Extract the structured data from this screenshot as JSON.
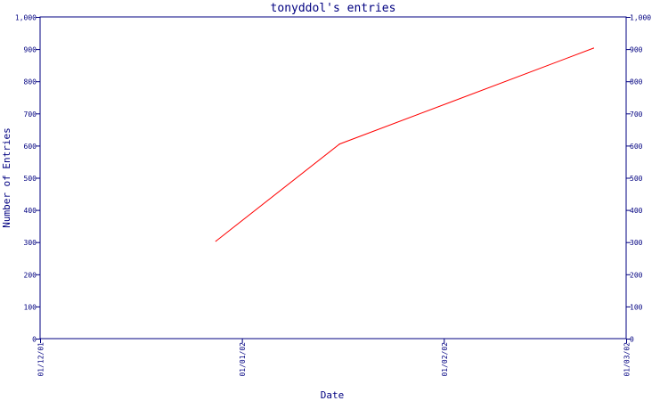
{
  "colors": {
    "axis": "#000080",
    "text": "#000080",
    "series": "#ff0000",
    "background": "#ffffff"
  },
  "chart_data": {
    "type": "line",
    "title": "tonyddol's entries",
    "xlabel": "Date",
    "ylabel": "Number of Entries",
    "x_axis_kind": "date",
    "xlim": [
      "2001-12-01",
      "2002-03-01"
    ],
    "ylim": [
      0,
      1000
    ],
    "y_ticks": [
      0,
      100,
      200,
      300,
      400,
      500,
      600,
      700,
      800,
      900,
      1000
    ],
    "y_tick_labels": [
      "0",
      "100",
      "200",
      "300",
      "400",
      "500",
      "600",
      "700",
      "800",
      "900",
      "1,000"
    ],
    "x_ticks": [
      "2001-12-01",
      "2002-01-01",
      "2002-02-01",
      "2002-03-01"
    ],
    "x_tick_labels": [
      "01/12/01",
      "01/01/02",
      "01/02/02",
      "01/03/02"
    ],
    "right_axis_mirrors_left": true,
    "grid": false,
    "legend": "none",
    "series": [
      {
        "x": [
          "2001-12-28",
          "2002-01-16",
          "2002-02-24"
        ],
        "y": [
          303,
          605,
          903
        ]
      }
    ]
  }
}
